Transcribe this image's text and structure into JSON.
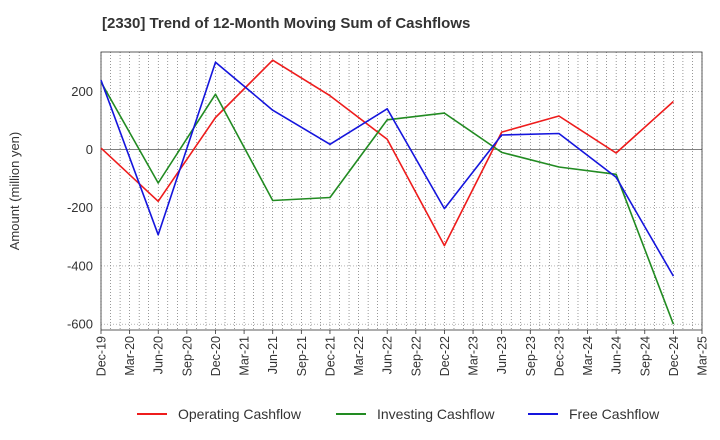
{
  "chart_data": {
    "type": "line",
    "title": "[2330]  Trend of 12-Month Moving Sum of Cashflows",
    "xlabel": "",
    "ylabel": "Amount (million yen)",
    "x_ticks": [
      "Dec-19",
      "Mar-20",
      "Jun-20",
      "Sep-20",
      "Dec-20",
      "Mar-21",
      "Jun-21",
      "Sep-21",
      "Dec-21",
      "Mar-22",
      "Jun-22",
      "Sep-22",
      "Dec-22",
      "Mar-23",
      "Jun-23",
      "Sep-23",
      "Dec-23",
      "Mar-24",
      "Jun-24",
      "Sep-24",
      "Dec-24",
      "Mar-25"
    ],
    "y_ticks": [
      200,
      0,
      -200,
      -400,
      -600
    ],
    "ylim": [
      -620,
      335
    ],
    "grid": true,
    "legend_position": "bottom",
    "series": [
      {
        "name": "Operating Cashflow",
        "color": "#ee1c1c",
        "points": [
          [
            "Dec-19",
            5
          ],
          [
            "Jun-20",
            -178
          ],
          [
            "Dec-20",
            110
          ],
          [
            "Jun-21",
            307
          ],
          [
            "Dec-21",
            185
          ],
          [
            "Jun-22",
            35
          ],
          [
            "Dec-22",
            -330
          ],
          [
            "Jun-23",
            60
          ],
          [
            "Dec-23",
            115
          ],
          [
            "Jun-24",
            -12
          ],
          [
            "Dec-24",
            165
          ]
        ]
      },
      {
        "name": "Investing Cashflow",
        "color": "#228b22",
        "points": [
          [
            "Dec-19",
            232
          ],
          [
            "Jun-20",
            -115
          ],
          [
            "Dec-20",
            190
          ],
          [
            "Jun-21",
            -175
          ],
          [
            "Dec-21",
            -165
          ],
          [
            "Jun-22",
            102
          ],
          [
            "Dec-22",
            125
          ],
          [
            "Jun-23",
            -10
          ],
          [
            "Dec-23",
            -60
          ],
          [
            "Jun-24",
            -85
          ],
          [
            "Dec-24",
            -600
          ]
        ]
      },
      {
        "name": "Free Cashflow",
        "color": "#1515dd",
        "points": [
          [
            "Dec-19",
            238
          ],
          [
            "Jun-20",
            -293
          ],
          [
            "Dec-20",
            300
          ],
          [
            "Jun-21",
            135
          ],
          [
            "Dec-21",
            18
          ],
          [
            "Jun-22",
            140
          ],
          [
            "Dec-22",
            -203
          ],
          [
            "Jun-23",
            50
          ],
          [
            "Dec-23",
            55
          ],
          [
            "Jun-24",
            -95
          ],
          [
            "Dec-24",
            -435
          ]
        ]
      }
    ]
  }
}
